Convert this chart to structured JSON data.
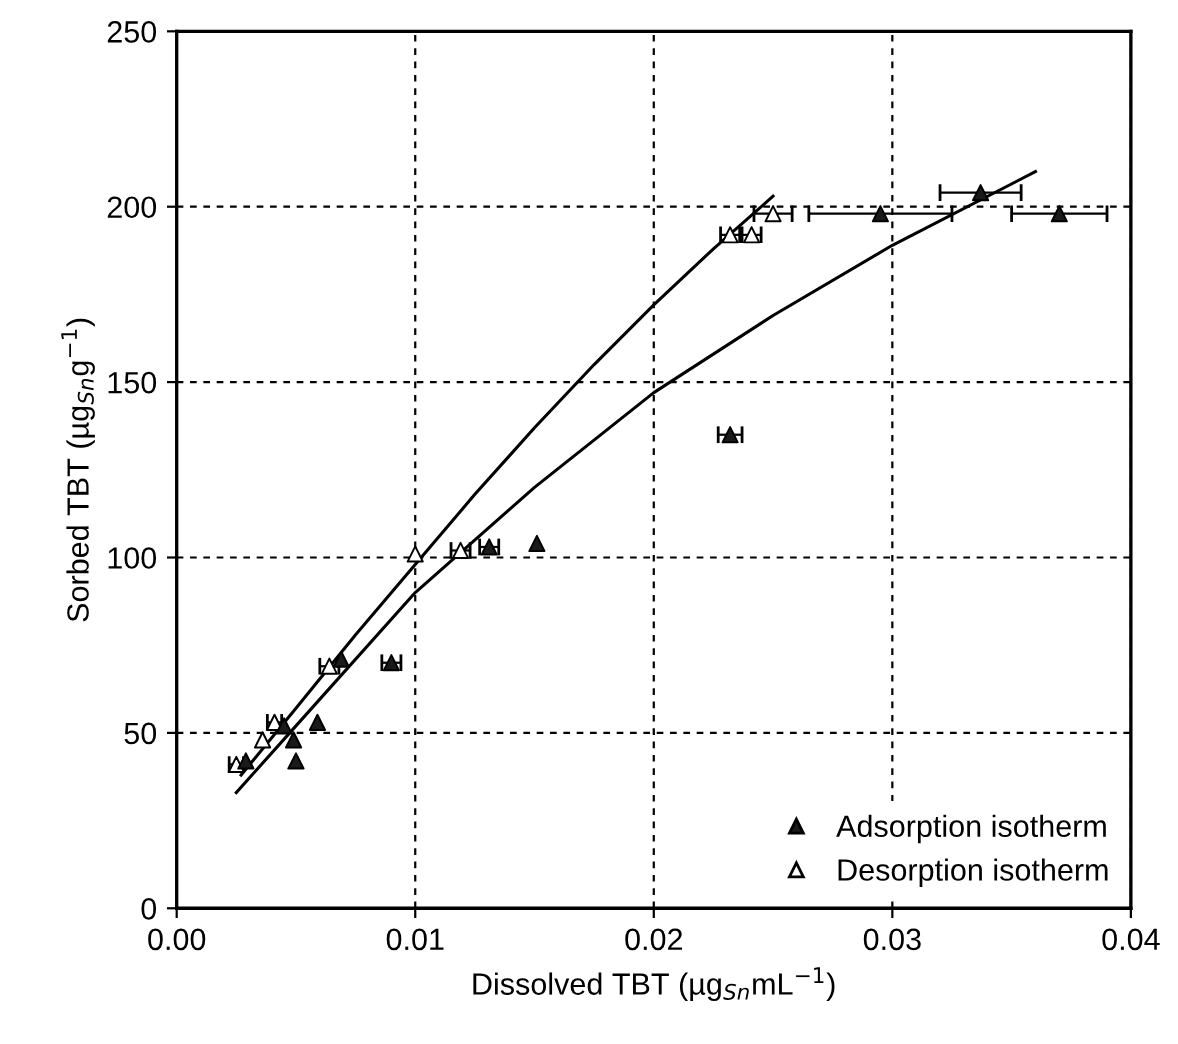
{
  "chart_data": {
    "type": "scatter",
    "xlabel": "Dissolved TBT (µg$_{Sn}$mL$^{−1}$)",
    "ylabel": "Sorbed TBT (µg$_{Sn}$g$^{−1}$)",
    "xlim": [
      0,
      0.04
    ],
    "ylim": [
      0,
      250
    ],
    "xticks": [
      {
        "value": 0,
        "label": "0.00"
      },
      {
        "value": 0.01,
        "label": "0.01"
      },
      {
        "value": 0.02,
        "label": "0.02"
      },
      {
        "value": 0.03,
        "label": "0.03"
      },
      {
        "value": 0.04,
        "label": "0.04"
      }
    ],
    "yticks": [
      0,
      50,
      100,
      150,
      200,
      250
    ],
    "grid": true,
    "legend": "bottom right",
    "series": [
      {
        "name": "Adsorption isotherm",
        "color": "#1a1a1a",
        "marker": "triangle",
        "x": [
          0.0029,
          0.0045,
          0.0049,
          0.005,
          0.0059,
          0.0069,
          0.009,
          0.0131,
          0.0151,
          0.0232,
          0.0295,
          0.0337,
          0.037
        ],
        "values": [
          42,
          52,
          48,
          42,
          53,
          71,
          70,
          103,
          104,
          135,
          198,
          204,
          198
        ],
        "xerrors": [
          null,
          null,
          null,
          null,
          null,
          null,
          0.0004,
          0.0004,
          null,
          0.0005,
          0.003,
          0.0017,
          0.002
        ]
      },
      {
        "name": "Desorption isotherm",
        "color": "#ffffff",
        "marker": "triangle",
        "x": [
          0.0025,
          0.0036,
          0.0041,
          0.0064,
          0.01,
          0.0119,
          0.0232,
          0.0241,
          0.025
        ],
        "values": [
          41,
          48,
          53,
          69,
          101,
          102,
          192,
          192,
          198
        ],
        "xerrors": [
          0.0003,
          null,
          0.0003,
          0.0004,
          null,
          0.0004,
          0.0004,
          0.0004,
          0.0008
        ]
      },
      {
        "type": "line",
        "color": "#000000",
        "marker": "none",
        "x": [
          0.0027,
          0.005,
          0.0075,
          0.01,
          0.0125,
          0.015,
          0.0175,
          0.02,
          0.0225,
          0.025
        ],
        "values": [
          38,
          57,
          78,
          98,
          118,
          137,
          155,
          172,
          188,
          203
        ]
      },
      {
        "type": "line",
        "color": "#000000",
        "marker": "none",
        "x": [
          0.0025,
          0.005,
          0.01,
          0.015,
          0.02,
          0.025,
          0.03,
          0.036
        ],
        "values": [
          33,
          52,
          90,
          120,
          147,
          169,
          189,
          210
        ]
      }
    ]
  }
}
